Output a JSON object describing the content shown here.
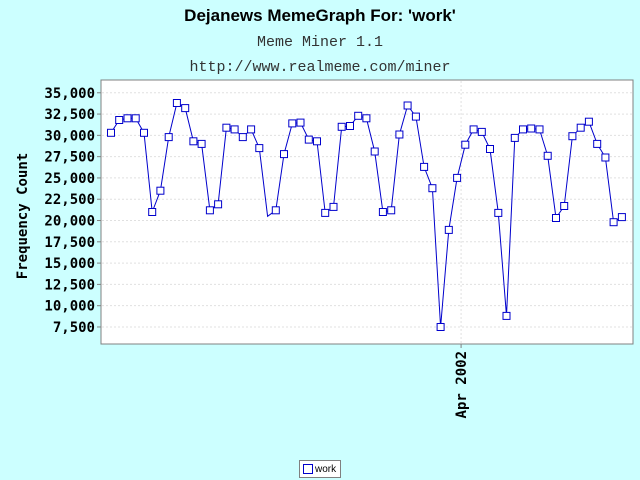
{
  "header": {
    "title": "Dejanews MemeGraph For: 'work'",
    "subtitle": "Meme Miner 1.1",
    "url": "http://www.realmeme.com/miner"
  },
  "legend": {
    "label": "work"
  },
  "colors": {
    "background": "#ccffff",
    "plot_bg": "#ffffff",
    "series": "#0000cc",
    "grid": "#e0e0e0"
  },
  "chart_data": {
    "type": "line",
    "title": "Dejanews MemeGraph For: 'work'",
    "xlabel": "",
    "ylabel": "Frequency Count",
    "ylim": [
      5500,
      36500
    ],
    "yticks": [
      7500,
      10000,
      12500,
      15000,
      17500,
      20000,
      22500,
      25000,
      27500,
      30000,
      32500,
      35000
    ],
    "ytick_labels": [
      "7,500",
      "10,000",
      "12,500",
      "15,000",
      "17,500",
      "20,000",
      "22,500",
      "25,000",
      "27,500",
      "30,000",
      "32,500",
      "35,000"
    ],
    "xtick_label": "Apr 2002",
    "xtick_index": 42,
    "legend_position": "bottom-center",
    "series": [
      {
        "name": "work",
        "values": [
          30300,
          31800,
          32000,
          32000,
          30300,
          21000,
          23500,
          29800,
          33800,
          33200,
          29300,
          29000,
          21200,
          21900,
          30900,
          30700,
          29800,
          30700,
          28500,
          20500,
          21200,
          27800,
          31400,
          31500,
          29500,
          29300,
          20900,
          21600,
          31000,
          31100,
          32300,
          32000,
          28100,
          21000,
          21200,
          30100,
          33500,
          32200,
          26300,
          23800,
          7500,
          18900,
          25000,
          28900,
          30700,
          30400,
          28400,
          20900,
          8800,
          29700,
          30700,
          30800,
          30700,
          27600,
          20300,
          21700,
          29900,
          30900,
          31600,
          29000,
          27400,
          19800,
          20400
        ],
        "hidden_markers": [
          19
        ]
      }
    ]
  }
}
